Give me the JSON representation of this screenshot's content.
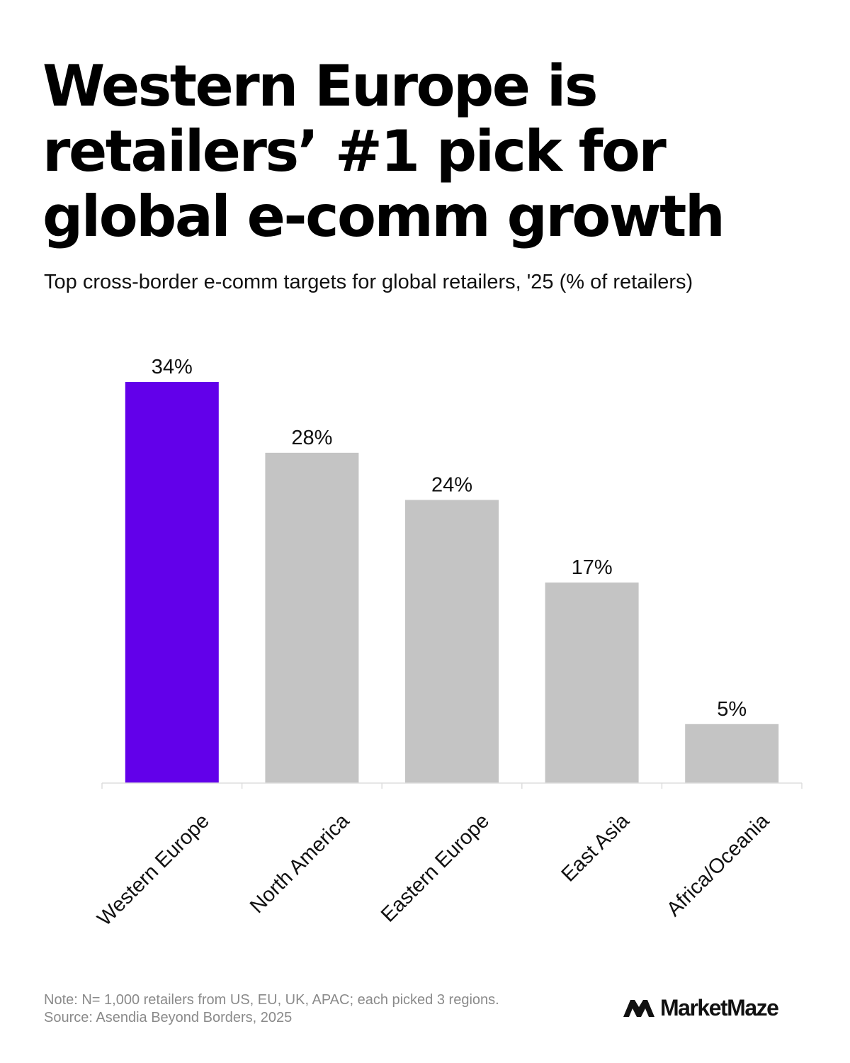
{
  "header": {
    "title_lines": [
      "Western Europe is",
      "retailers’ #1 pick for",
      "global e-comm growth"
    ],
    "subtitle": "Top cross-border e-comm targets for global retailers, '25 (% of retailers)"
  },
  "chart_data": {
    "type": "bar",
    "title": "Western Europe is retailers’ #1 pick for global e-comm growth",
    "subtitle": "Top cross-border e-comm targets for global retailers, '25 (% of retailers)",
    "categories": [
      "Western Europe",
      "North America",
      "Eastern Europe",
      "East Asia",
      "Africa/Oceania"
    ],
    "values": [
      34,
      28,
      24,
      17,
      5
    ],
    "value_labels": [
      "34%",
      "28%",
      "24%",
      "17%",
      "5%"
    ],
    "unit": "%",
    "ylim": [
      0,
      34
    ],
    "grid": false,
    "legend": "none",
    "colors": {
      "highlight": "#6200EA",
      "default": "#C4C4C4",
      "axis": "#DDDDDD"
    },
    "highlight_index": 0
  },
  "footer": {
    "note": "Note: N= 1,000 retailers from US, EU, UK, APAC; each picked 3 regions.",
    "source": "Source: Asendia Beyond Borders, 2025",
    "brand_name": "MarketMaze",
    "brand_icon": "mountain-peaks-icon"
  }
}
